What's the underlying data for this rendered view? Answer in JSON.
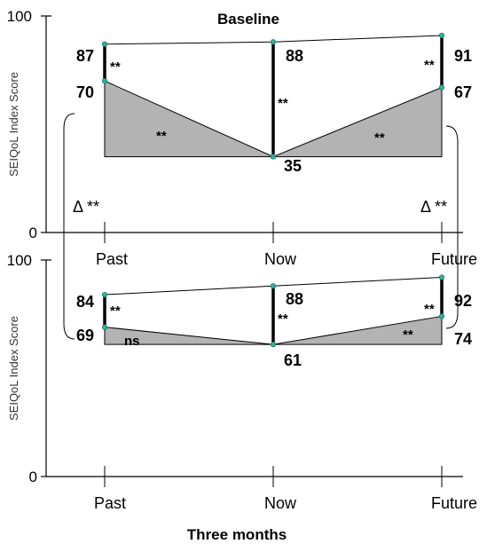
{
  "chart_data": [
    {
      "type": "line",
      "title": "Baseline",
      "ylabel": "SEIQoL Index Score",
      "ylim": [
        0,
        100
      ],
      "yticks": [
        "0",
        "100"
      ],
      "categories": [
        "Past",
        "Now",
        "Future"
      ],
      "series": [
        {
          "values": [
            87,
            88,
            91
          ]
        },
        {
          "values": [
            70,
            35,
            67
          ]
        }
      ],
      "value_labels": {
        "top": [
          "87",
          "88",
          "91"
        ],
        "bottom": [
          "70",
          "35",
          "67"
        ]
      },
      "annotations": {
        "gap_past": "**",
        "gap_now": "**",
        "gap_future": "**",
        "slope_left": "**",
        "slope_right": "**",
        "delta_left": "Δ **",
        "delta_right": "Δ **"
      }
    },
    {
      "type": "line",
      "title": "",
      "ylabel": "SEIQoL Index Score",
      "ylim": [
        0,
        100
      ],
      "yticks": [
        "0",
        "100"
      ],
      "categories": [
        "Past",
        "Now",
        "Future"
      ],
      "series": [
        {
          "values": [
            84,
            88,
            92
          ]
        },
        {
          "values": [
            69,
            61,
            74
          ]
        }
      ],
      "value_labels": {
        "top": [
          "84",
          "88",
          "92"
        ],
        "bottom": [
          "69",
          "61",
          "74"
        ]
      },
      "annotations": {
        "gap_past": "**",
        "gap_now": "**",
        "gap_future": "**",
        "slope_left": "ns",
        "slope_right": "**"
      }
    }
  ],
  "xlabel": "Three months",
  "colors": {
    "fill": "#b3b3b3",
    "marker": "#2bb39a",
    "line": "#000000"
  }
}
